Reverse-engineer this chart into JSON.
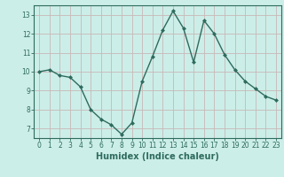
{
  "x": [
    0,
    1,
    2,
    3,
    4,
    5,
    6,
    7,
    8,
    9,
    10,
    11,
    12,
    13,
    14,
    15,
    16,
    17,
    18,
    19,
    20,
    21,
    22,
    23
  ],
  "y": [
    10.0,
    10.1,
    9.8,
    9.7,
    9.2,
    8.0,
    7.5,
    7.2,
    6.7,
    7.3,
    9.5,
    10.8,
    12.2,
    13.2,
    12.3,
    10.5,
    12.7,
    12.0,
    10.9,
    10.1,
    9.5,
    9.1,
    8.7,
    8.5
  ],
  "line_color": "#2e6b5e",
  "marker": "D",
  "markersize": 2.0,
  "linewidth": 1.0,
  "bg_color": "#cceee8",
  "grid_color": "#c8b8b8",
  "xlabel": "Humidex (Indice chaleur)",
  "ylim": [
    6.5,
    13.5
  ],
  "xlim": [
    -0.5,
    23.5
  ],
  "yticks": [
    7,
    8,
    9,
    10,
    11,
    12,
    13
  ],
  "xticks": [
    0,
    1,
    2,
    3,
    4,
    5,
    6,
    7,
    8,
    9,
    10,
    11,
    12,
    13,
    14,
    15,
    16,
    17,
    18,
    19,
    20,
    21,
    22,
    23
  ],
  "tick_fontsize": 5.5,
  "xlabel_fontsize": 7.0
}
